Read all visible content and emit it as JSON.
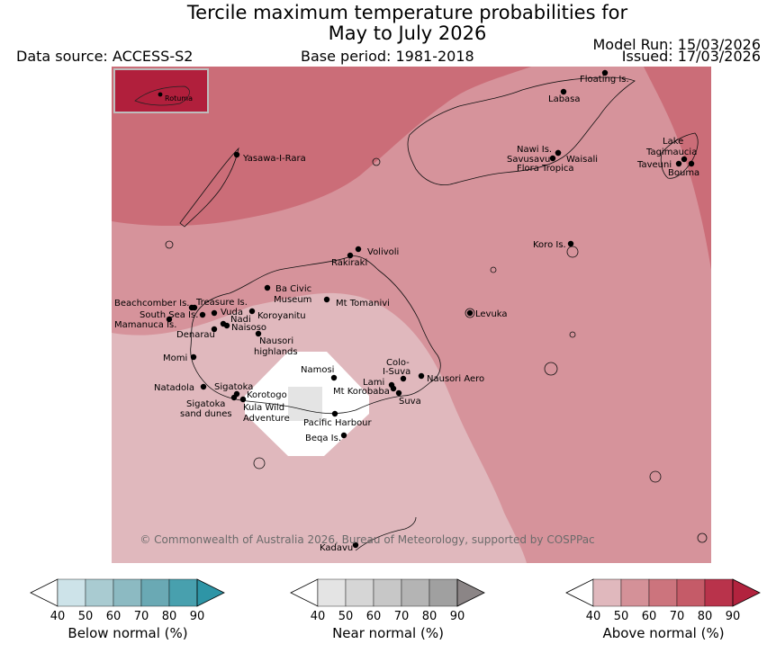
{
  "header": {
    "title_line1": "Tercile maximum temperature probabilities for",
    "title_line2": "May to July 2026",
    "data_source": "Data source: ACCESS-S2",
    "base_period": "Base period: 1981-2018",
    "model_run": "Model Run: 15/03/2026",
    "issued": "Issued: 17/03/2026"
  },
  "inset": {
    "label": "Rotuma"
  },
  "copyright": "© Commonwealth of Australia 2026, Bureau of Meteorology, supported by COSPPac",
  "places": [
    {
      "name": "Floating Is."
    },
    {
      "name": "Labasa"
    },
    {
      "name": "Yasawa-I-Rara"
    },
    {
      "name": "Nawi Is."
    },
    {
      "name": "Savusavu"
    },
    {
      "name": "Waisali"
    },
    {
      "name": "Flora Tropica"
    },
    {
      "name": "Lake"
    },
    {
      "name": "Tagimaucia"
    },
    {
      "name": "Taveuni"
    },
    {
      "name": "Bouma"
    },
    {
      "name": "Koro Is."
    },
    {
      "name": "Volivoli"
    },
    {
      "name": "Rakiraki"
    },
    {
      "name": "Beachcomber Is."
    },
    {
      "name": "Treasure Is."
    },
    {
      "name": "South Sea Is."
    },
    {
      "name": "Vuda"
    },
    {
      "name": "Nadi"
    },
    {
      "name": "Mamanuca Is."
    },
    {
      "name": "Denarau"
    },
    {
      "name": "Naisoso"
    },
    {
      "name": "Ba Civic"
    },
    {
      "name": "Museum"
    },
    {
      "name": "Mt Tomanivi"
    },
    {
      "name": "Koroyanitu"
    },
    {
      "name": "Nausori"
    },
    {
      "name": "highlands"
    },
    {
      "name": "Levuka"
    },
    {
      "name": "Momi"
    },
    {
      "name": "Natadola"
    },
    {
      "name": "Sigatoka"
    },
    {
      "name": "Korotogo"
    },
    {
      "name": "Kula Wild"
    },
    {
      "name": "Adventure"
    },
    {
      "name": "Sigatoka"
    },
    {
      "name": "sand dunes"
    },
    {
      "name": "Namosi"
    },
    {
      "name": "Colo-"
    },
    {
      "name": "I-Suva"
    },
    {
      "name": "Lami"
    },
    {
      "name": "Mt Korobaba"
    },
    {
      "name": "Nausori Aero"
    },
    {
      "name": "Suva"
    },
    {
      "name": "Pacific Harbour"
    },
    {
      "name": "Beqa Is."
    },
    {
      "name": "Kadavu"
    }
  ],
  "legend": {
    "ticks": [
      "40",
      "50",
      "60",
      "70",
      "80",
      "90"
    ],
    "below": {
      "title": "Below normal (%)",
      "colors": [
        "#ffffff",
        "#cde3e9",
        "#a9cbd1",
        "#8cbac2",
        "#6aa9b4",
        "#48a0ae",
        "#2e95a6"
      ]
    },
    "near": {
      "title": "Near normal (%)",
      "colors": [
        "#ffffff",
        "#e4e4e4",
        "#d6d6d6",
        "#c7c7c7",
        "#b4b4b4",
        "#a0a0a0",
        "#8b8586"
      ]
    },
    "above": {
      "title": "Above normal (%)",
      "colors": [
        "#ffffff",
        "#e0b8bd",
        "#d49198",
        "#cc747d",
        "#c55b68",
        "#b9334b",
        "#b2233e"
      ]
    }
  }
}
